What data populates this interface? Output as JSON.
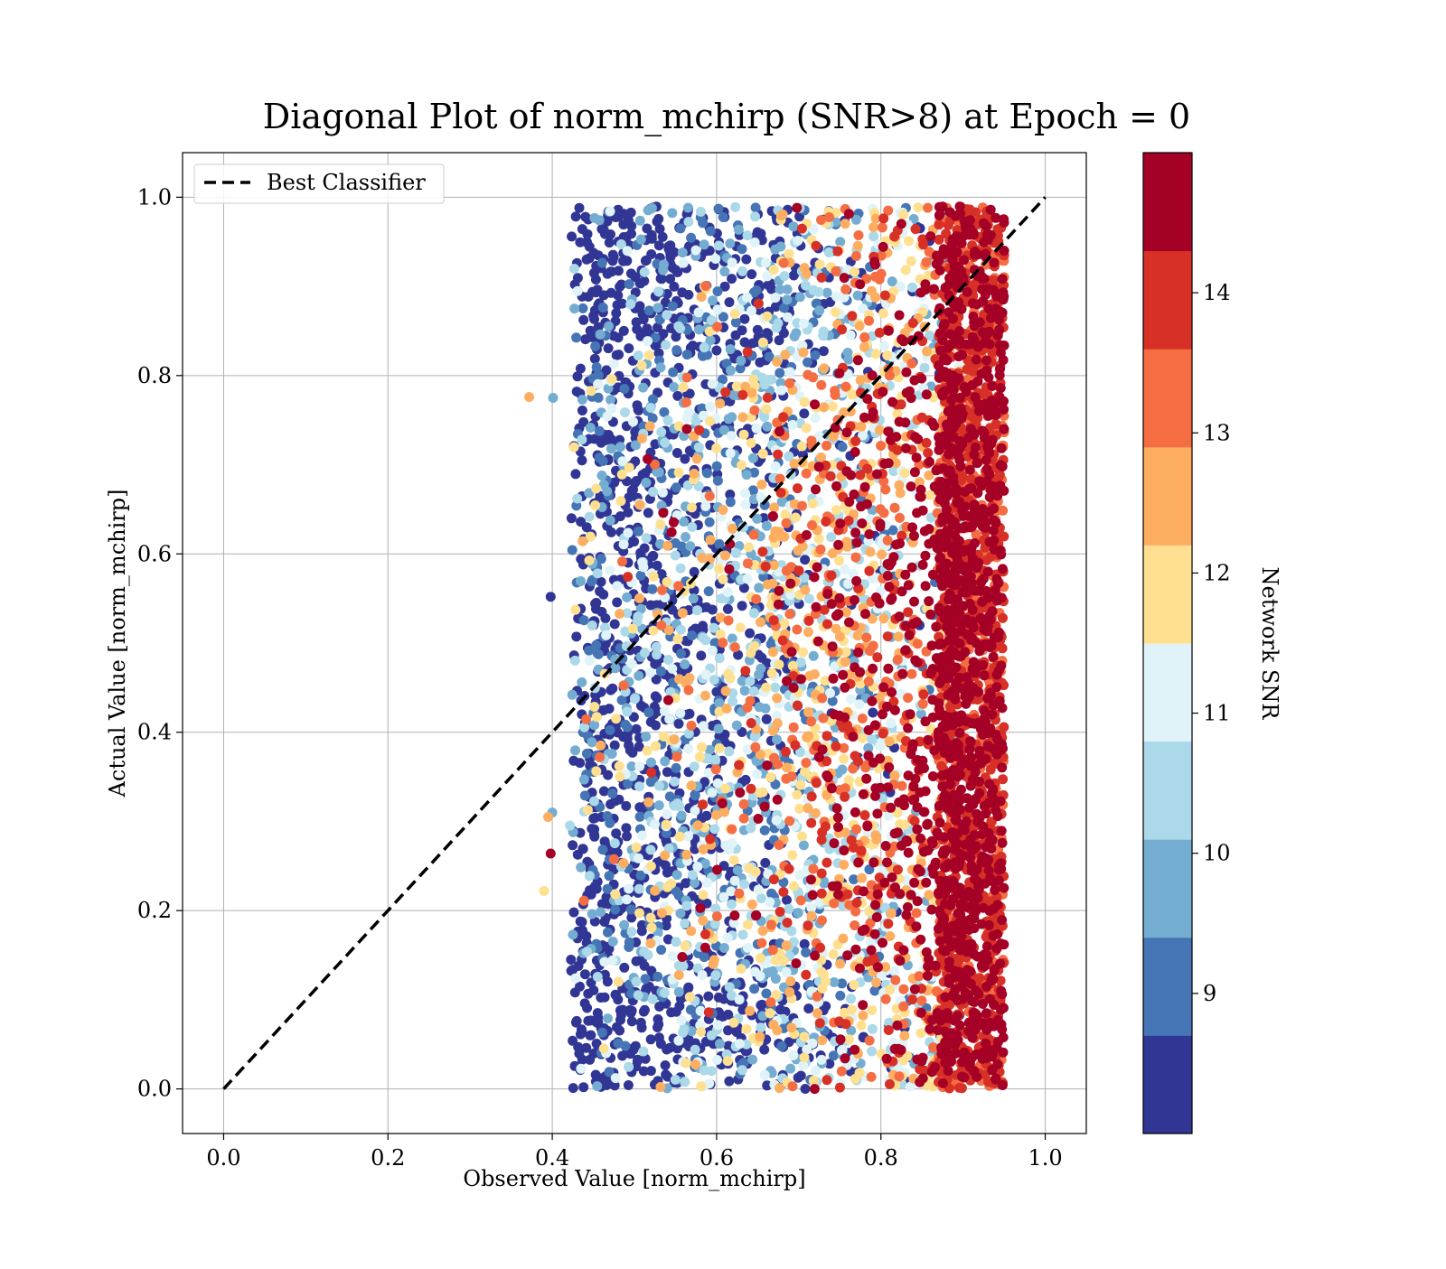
{
  "chart_data": {
    "type": "scatter",
    "title": "Diagonal Plot of norm_mchirp (SNR>8) at Epoch = 0",
    "xlabel": "Observed Value [norm_mchirp]",
    "ylabel": "Actual Value [norm_mchirp]",
    "xlim": [
      -0.05,
      1.05
    ],
    "ylim": [
      -0.05,
      1.05
    ],
    "x_ticks": [
      0.0,
      0.2,
      0.4,
      0.6,
      0.8,
      1.0
    ],
    "x_tick_labels": [
      "0.0",
      "0.2",
      "0.4",
      "0.6",
      "0.8",
      "1.0"
    ],
    "y_ticks": [
      0.0,
      0.2,
      0.4,
      0.6,
      0.8,
      1.0
    ],
    "y_tick_labels": [
      "0.0",
      "0.2",
      "0.4",
      "0.6",
      "0.8",
      "1.0"
    ],
    "grid": true,
    "legend": {
      "placement": "top-left",
      "entries": [
        "Best Classifier"
      ]
    },
    "reference_line": {
      "name": "Best Classifier",
      "style": "dashed",
      "color": "#000000",
      "x": [
        0.0,
        1.0
      ],
      "y": [
        0.0,
        1.0
      ]
    },
    "scatter_description": {
      "x_range": [
        0.37,
        0.95
      ],
      "y_range": [
        0.0,
        0.99
      ],
      "approx_points": 20000,
      "high_snr_concentration_x": [
        0.87,
        0.95
      ]
    },
    "colorbar": {
      "label": "Network SNR",
      "range": [
        8,
        15
      ],
      "ticks": [
        9,
        10,
        11,
        12,
        13,
        14
      ],
      "tick_labels": [
        "9",
        "10",
        "11",
        "12",
        "13",
        "14"
      ],
      "levels": [
        8.0,
        8.7,
        9.4,
        10.1,
        10.8,
        11.5,
        12.2,
        12.9,
        13.6,
        14.3,
        15.0
      ],
      "colors": [
        "#313695",
        "#4575b4",
        "#74add1",
        "#abd9e9",
        "#e0f3f8",
        "#fee090",
        "#fdae61",
        "#f46d43",
        "#d73027",
        "#a50026"
      ]
    }
  }
}
